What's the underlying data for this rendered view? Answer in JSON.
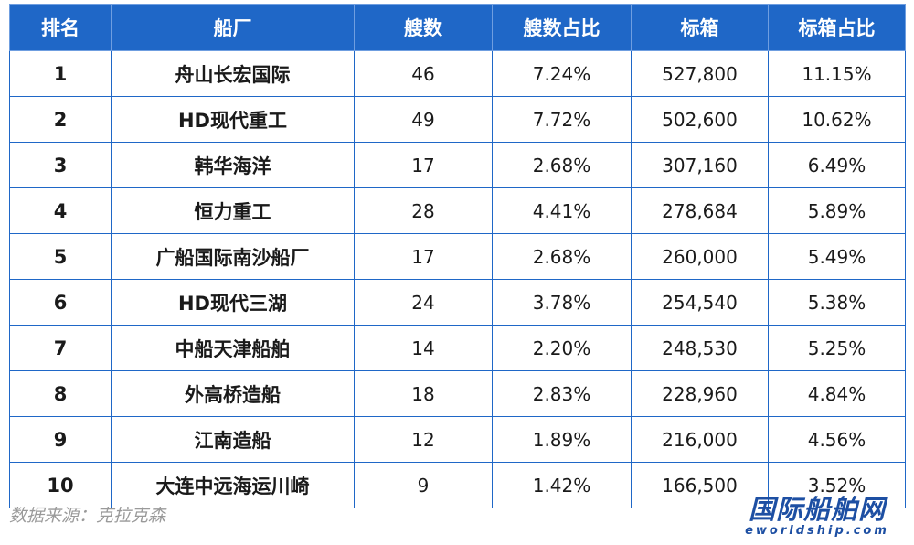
{
  "table": {
    "headers": [
      "排名",
      "船厂",
      "艘数",
      "艘数占比",
      "标箱",
      "标箱占比"
    ],
    "rows": [
      [
        "1",
        "舟山长宏国际",
        "46",
        "7.24%",
        "527,800",
        "11.15%"
      ],
      [
        "2",
        "HD现代重工",
        "49",
        "7.72%",
        "502,600",
        "10.62%"
      ],
      [
        "3",
        "韩华海洋",
        "17",
        "2.68%",
        "307,160",
        "6.49%"
      ],
      [
        "4",
        "恒力重工",
        "28",
        "4.41%",
        "278,684",
        "5.89%"
      ],
      [
        "5",
        "广船国际南沙船厂",
        "17",
        "2.68%",
        "260,000",
        "5.49%"
      ],
      [
        "6",
        "HD现代三湖",
        "24",
        "3.78%",
        "254,540",
        "5.38%"
      ],
      [
        "7",
        "中船天津船舶",
        "14",
        "2.20%",
        "248,530",
        "5.25%"
      ],
      [
        "8",
        "外高桥造船",
        "18",
        "2.83%",
        "228,960",
        "4.84%"
      ],
      [
        "9",
        "江南造船",
        "12",
        "1.89%",
        "216,000",
        "4.56%"
      ],
      [
        "10",
        "大连中远海运川崎",
        "9",
        "1.42%",
        "166,500",
        "3.52%"
      ]
    ]
  },
  "footer": {
    "source": "数据来源：克拉克森",
    "logo_main": "国际船舶网",
    "logo_sub": "eworldship.com"
  },
  "colors": {
    "header_bg": "#1f67c7",
    "border": "#1f67c7",
    "logo": "#1d4fa3"
  }
}
